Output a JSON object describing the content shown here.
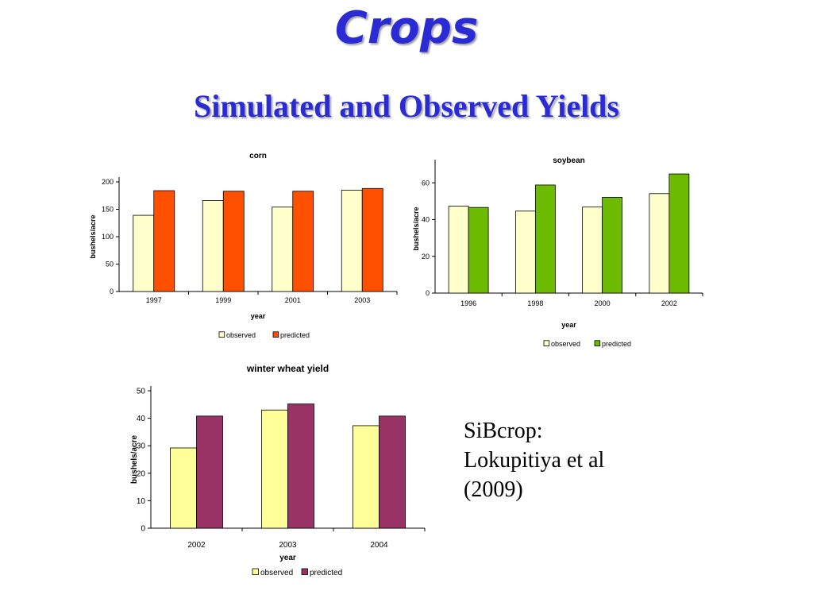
{
  "slide": {
    "title": "Crops",
    "subtitle": "Simulated and Observed Yields",
    "citation_lines": [
      "SiBcrop:",
      "Lokupitiya et al",
      "(2009)"
    ]
  },
  "colors": {
    "title": "#2b2bd6",
    "observed_light": "#ffffcc",
    "observed_wheat": "#ffff99",
    "corn_predicted": "#ff5000",
    "soybean_predicted": "#6dbb00",
    "wheat_predicted": "#993366"
  },
  "chart_data": [
    {
      "id": "corn",
      "type": "bar",
      "title": "corn",
      "xlabel": "year",
      "ylabel": "bushels/acre",
      "ylim": [
        0,
        200
      ],
      "yticks": [
        0,
        50,
        100,
        150,
        200
      ],
      "categories": [
        "1997",
        "1999",
        "2001",
        "2003"
      ],
      "series": [
        {
          "name": "observed",
          "values": [
            139,
            166,
            154,
            185
          ],
          "color": "#ffffcc"
        },
        {
          "name": "predicted",
          "values": [
            184,
            183,
            183,
            188
          ],
          "color": "#ff5000"
        }
      ],
      "legend": "bottom",
      "grid": false
    },
    {
      "id": "soybean",
      "type": "bar",
      "title": "soybean",
      "xlabel": "year",
      "ylabel": "bushels/acre",
      "ylim": [
        0,
        70
      ],
      "yticks": [
        0,
        20,
        40,
        60
      ],
      "categories": [
        "1996",
        "1998",
        "2000",
        "2002"
      ],
      "series": [
        {
          "name": "observed",
          "values": [
            47.3,
            44.6,
            46.8,
            54.1
          ],
          "color": "#ffffcc"
        },
        {
          "name": "predicted",
          "values": [
            46.6,
            58.8,
            52.1,
            64.8
          ],
          "color": "#6dbb00"
        }
      ],
      "legend": "bottom",
      "grid": false
    },
    {
      "id": "wheat",
      "type": "bar",
      "title": "winter wheat yield",
      "xlabel": "year",
      "ylabel": "bushels/acre",
      "ylim": [
        0,
        50
      ],
      "yticks": [
        0,
        10,
        20,
        30,
        40,
        50
      ],
      "categories": [
        "2002",
        "2003",
        "2004"
      ],
      "series": [
        {
          "name": "observed",
          "values": [
            29.2,
            43,
            37.3
          ],
          "color": "#ffff99"
        },
        {
          "name": "predicted",
          "values": [
            40.8,
            45.2,
            40.8
          ],
          "color": "#993366"
        }
      ],
      "legend": "bottom",
      "grid": false
    }
  ]
}
